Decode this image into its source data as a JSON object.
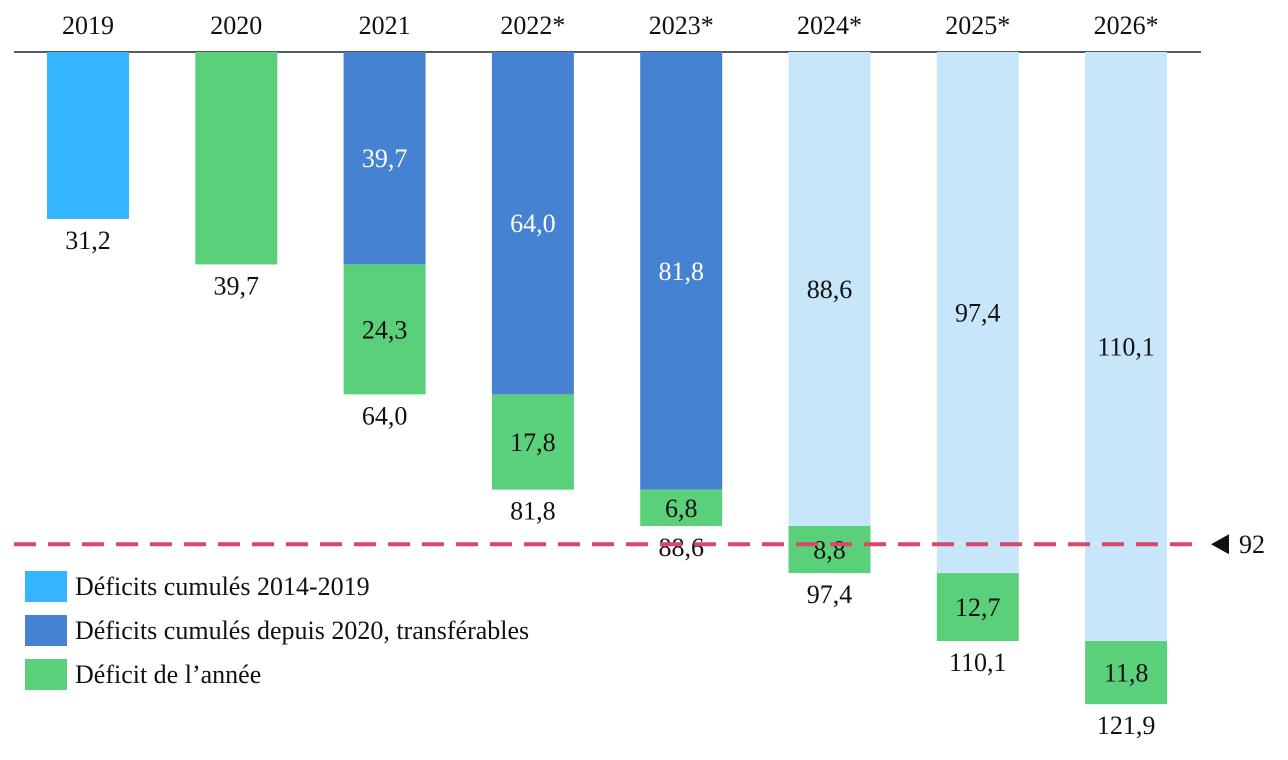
{
  "chart_data": {
    "type": "bar",
    "orientation": "downward-stacked",
    "categories": [
      "2019",
      "2020",
      "2021",
      "2022*",
      "2023*",
      "2024*",
      "2025*",
      "2026*"
    ],
    "series": [
      {
        "name": "Déficits cumulés 2014-2019",
        "key": "legacy",
        "values": [
          31.2,
          0,
          0,
          0,
          0,
          0,
          0,
          0
        ],
        "labels": [
          "",
          "",
          "",
          "",
          "",
          "",
          "",
          ""
        ]
      },
      {
        "name": "Déficits cumulés depuis 2020, transférables",
        "key": "cumulated",
        "values": [
          0,
          0,
          39.7,
          64.0,
          81.8,
          88.6,
          97.4,
          110.1
        ],
        "labels": [
          "",
          "",
          "39,7",
          "64,0",
          "81,8",
          "88,6",
          "97,4",
          "110,1"
        ],
        "projected": [
          false,
          false,
          false,
          false,
          false,
          true,
          true,
          true
        ]
      },
      {
        "name": "Déficit de l’année",
        "key": "annual",
        "values": [
          0,
          39.7,
          24.3,
          17.8,
          6.8,
          8.8,
          12.7,
          11.8
        ],
        "labels": [
          "",
          "",
          "24,3",
          "17,8",
          "6,8",
          "8,8",
          "12,7",
          "11,8"
        ]
      }
    ],
    "totals": [
      31.2,
      39.7,
      64.0,
      81.8,
      88.6,
      97.4,
      110.1,
      121.9
    ],
    "total_labels": [
      "31,2",
      "39,7",
      "64,0",
      "81,8",
      "88,6",
      "97,4",
      "110,1",
      "121,9"
    ],
    "reference_line": {
      "value": 92,
      "label": "92"
    },
    "ylim": [
      0,
      130
    ],
    "title": "",
    "xlabel": "",
    "ylabel": "",
    "legend_position": "bottom-left",
    "colors": {
      "legacy": "#33b5ff",
      "cumulated": "#4682d2",
      "projected": "#c7e6fa",
      "annual": "#5ad07a",
      "reference": "#d9476b",
      "label_dark": "#111111",
      "label_light": "#ffffff"
    }
  }
}
